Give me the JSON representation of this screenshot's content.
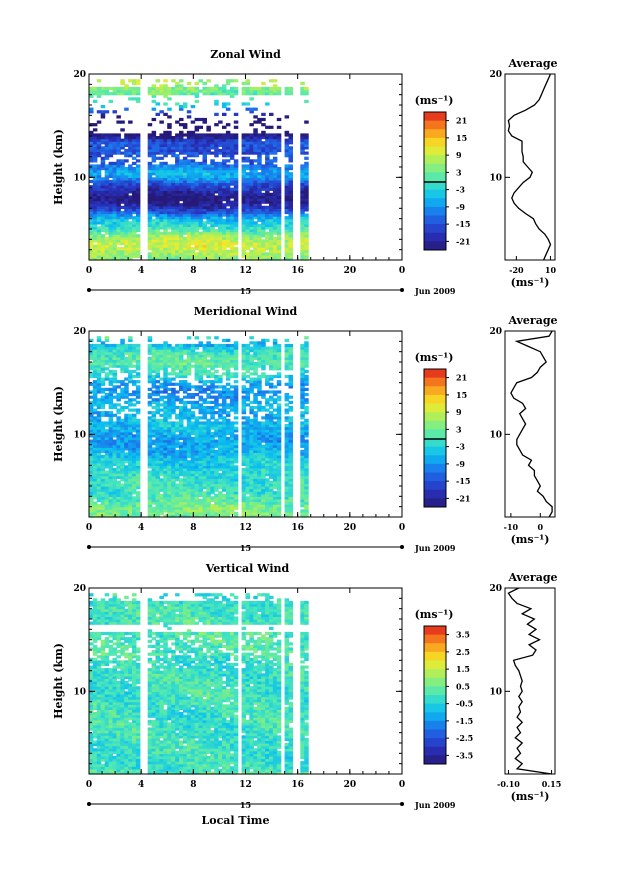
{
  "chart_data": [
    {
      "type": "heatmap",
      "title": "Zonal Wind",
      "xlabel": "",
      "ylabel": "Height (km)",
      "xlim": [
        0,
        24
      ],
      "ylim": [
        2,
        20
      ],
      "x_ticks": [
        "0",
        "4",
        "8",
        "12",
        "16",
        "20",
        "0"
      ],
      "y_ticks": [
        "10",
        "20"
      ],
      "date_label": "15",
      "month_label": "Jun 2009",
      "units_label": "(ms⁻¹)",
      "colorbar_ticks": [
        "21",
        "15",
        "9",
        "3",
        "-3",
        "-9",
        "-15",
        "-21"
      ],
      "colorbar_range": [
        -24,
        24
      ],
      "data_time_range": [
        0,
        16.8
      ],
      "gap_times": [
        4.2,
        11.6,
        14.9,
        15.9
      ],
      "profile": [
        [
          2,
          4
        ],
        [
          2.5,
          6
        ],
        [
          3,
          8
        ],
        [
          3.5,
          10
        ],
        [
          4,
          8
        ],
        [
          4.5,
          5
        ],
        [
          5,
          0
        ],
        [
          5.5,
          -3
        ],
        [
          6,
          -5
        ],
        [
          6.5,
          -12
        ],
        [
          7,
          -18
        ],
        [
          7.5,
          -22
        ],
        [
          8,
          -24
        ],
        [
          8.5,
          -22
        ],
        [
          9,
          -18
        ],
        [
          9.5,
          -14
        ],
        [
          10,
          -8
        ],
        [
          10.5,
          -6
        ],
        [
          11,
          -10
        ],
        [
          11.5,
          -14
        ],
        [
          12,
          -14
        ],
        [
          12.5,
          -15
        ],
        [
          13,
          -15
        ],
        [
          13.5,
          -15
        ],
        [
          14,
          -24
        ],
        [
          14.5,
          -27
        ],
        [
          15,
          -26
        ],
        [
          15.5,
          -27
        ],
        [
          16,
          -22
        ],
        [
          16.5,
          -12
        ],
        [
          17,
          -4
        ],
        [
          17.5,
          0
        ],
        [
          18,
          2
        ],
        [
          18.5,
          4
        ],
        [
          19,
          6
        ],
        [
          19.5,
          8
        ],
        [
          20,
          10
        ]
      ]
    },
    {
      "type": "heatmap",
      "title": "Meridional Wind",
      "xlabel": "",
      "ylabel": "Height (km)",
      "xlim": [
        0,
        24
      ],
      "ylim": [
        2,
        20
      ],
      "x_ticks": [
        "0",
        "4",
        "8",
        "12",
        "16",
        "20",
        "0"
      ],
      "y_ticks": [
        "10",
        "20"
      ],
      "date_label": "15",
      "month_label": "Jun 2009",
      "units_label": "(ms⁻¹)",
      "colorbar_ticks": [
        "21",
        "15",
        "9",
        "3",
        "-3",
        "-9",
        "-15",
        "-21"
      ],
      "colorbar_range": [
        -24,
        24
      ],
      "data_time_range": [
        0,
        16.8
      ],
      "gap_times": [
        4.2,
        11.6,
        14.9,
        15.9
      ],
      "profile": [
        [
          2,
          3
        ],
        [
          2.5,
          4
        ],
        [
          3,
          4
        ],
        [
          3.5,
          2
        ],
        [
          4,
          1
        ],
        [
          4.5,
          -1
        ],
        [
          5,
          0
        ],
        [
          5.5,
          -1
        ],
        [
          6,
          -2
        ],
        [
          6.5,
          -2
        ],
        [
          7,
          -4
        ],
        [
          7.5,
          -3
        ],
        [
          8,
          -6
        ],
        [
          8.5,
          -7
        ],
        [
          9,
          -8
        ],
        [
          9.5,
          -8
        ],
        [
          10,
          -7
        ],
        [
          10.5,
          -6
        ],
        [
          11,
          -5
        ],
        [
          11.5,
          -6
        ],
        [
          12,
          -7
        ],
        [
          12.5,
          -5
        ],
        [
          13,
          -6
        ],
        [
          13.5,
          -9
        ],
        [
          14,
          -10
        ],
        [
          14.5,
          -9
        ],
        [
          15,
          -8
        ],
        [
          15.5,
          -3
        ],
        [
          16,
          -1
        ],
        [
          16.5,
          0
        ],
        [
          17,
          2
        ],
        [
          17.5,
          1
        ],
        [
          18,
          0
        ],
        [
          18.5,
          -4
        ],
        [
          19,
          -8
        ],
        [
          19.5,
          3
        ],
        [
          20,
          4
        ]
      ]
    },
    {
      "type": "heatmap",
      "title": "Vertical Wind",
      "xlabel": "Local Time",
      "ylabel": "Height (km)",
      "xlim": [
        0,
        24
      ],
      "ylim": [
        2,
        20
      ],
      "x_ticks": [
        "0",
        "4",
        "8",
        "12",
        "16",
        "20",
        "0"
      ],
      "y_ticks": [
        "10",
        "20"
      ],
      "date_label": "15",
      "month_label": "Jun 2009",
      "units_label": "(ms⁻¹)",
      "colorbar_ticks": [
        "3.5",
        "2.5",
        "1.5",
        "0.5",
        "-0.5",
        "-1.5",
        "-2.5",
        "-3.5"
      ],
      "colorbar_range": [
        -4,
        4
      ],
      "data_time_range": [
        0,
        16.8
      ],
      "gap_times": [
        4.2,
        11.6,
        14.9,
        15.9
      ],
      "profile": [
        [
          2,
          0.15
        ],
        [
          2.5,
          -0.05
        ],
        [
          3,
          -0.02
        ],
        [
          3.5,
          -0.06
        ],
        [
          4,
          -0.03
        ],
        [
          4.5,
          -0.05
        ],
        [
          5,
          -0.02
        ],
        [
          5.5,
          -0.06
        ],
        [
          6,
          -0.03
        ],
        [
          6.5,
          -0.05
        ],
        [
          7,
          -0.02
        ],
        [
          7.5,
          -0.05
        ],
        [
          8,
          -0.03
        ],
        [
          8.5,
          -0.04
        ],
        [
          9,
          -0.02
        ],
        [
          9.5,
          -0.04
        ],
        [
          10,
          -0.02
        ],
        [
          10.5,
          -0.03
        ],
        [
          11,
          -0.02
        ],
        [
          11.5,
          -0.03
        ],
        [
          12,
          -0.04
        ],
        [
          12.5,
          -0.06
        ],
        [
          13,
          -0.07
        ],
        [
          13.5,
          0.04
        ],
        [
          14,
          0.06
        ],
        [
          14.5,
          0.02
        ],
        [
          15,
          0.08
        ],
        [
          15.5,
          0.02
        ],
        [
          16,
          0.06
        ],
        [
          16.5,
          0.01
        ],
        [
          17,
          0.05
        ],
        [
          17.5,
          -0.02
        ],
        [
          18,
          0.03
        ],
        [
          18.5,
          -0.05
        ],
        [
          19,
          -0.08
        ],
        [
          19.5,
          -0.1
        ],
        [
          20,
          -0.04
        ]
      ]
    }
  ],
  "profiles": [
    {
      "title": "Average",
      "xlabel": "(ms⁻¹)",
      "x_ticks": [
        "-20",
        "10"
      ],
      "y_ticks": [
        "10",
        "20"
      ],
      "xlim": [
        -30,
        14
      ]
    },
    {
      "title": "Average",
      "xlabel": "(ms⁻¹)",
      "x_ticks": [
        "-10",
        "0"
      ],
      "y_ticks": [
        "10",
        "20"
      ],
      "xlim": [
        -12,
        5
      ]
    },
    {
      "title": "Average",
      "xlabel": "(ms⁻¹)",
      "x_ticks": [
        "-0.10",
        "0.15"
      ],
      "y_ticks": [
        "10",
        "20"
      ],
      "xlim": [
        -0.12,
        0.17
      ]
    }
  ]
}
